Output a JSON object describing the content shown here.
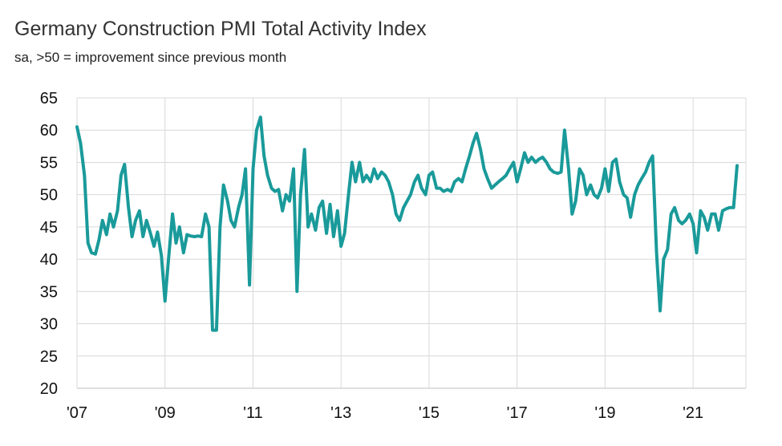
{
  "chart_data": {
    "type": "line",
    "title": "Germany Construction PMI Total Activity Index",
    "subtitle": "sa, >50 = improvement since previous month",
    "xlabel": "",
    "ylabel": "",
    "ylim": [
      20,
      65
    ],
    "yticks": [
      20,
      25,
      30,
      35,
      40,
      45,
      50,
      55,
      60,
      65
    ],
    "xlim": [
      2007.0,
      2022.2
    ],
    "xticks": [
      {
        "value": 2007,
        "label": "'07"
      },
      {
        "value": 2009,
        "label": "'09"
      },
      {
        "value": 2011,
        "label": "'11"
      },
      {
        "value": 2013,
        "label": "'13"
      },
      {
        "value": 2015,
        "label": "'15"
      },
      {
        "value": 2017,
        "label": "'17"
      },
      {
        "value": 2019,
        "label": "'19"
      },
      {
        "value": 2021,
        "label": "'21"
      }
    ],
    "grid": true,
    "line_color": "#1a9a9a",
    "series": [
      {
        "name": "",
        "points": [
          [
            2007.0,
            60.5
          ],
          [
            2007.08,
            58
          ],
          [
            2007.17,
            53
          ],
          [
            2007.25,
            42.5
          ],
          [
            2007.33,
            41
          ],
          [
            2007.42,
            40.8
          ],
          [
            2007.5,
            43
          ],
          [
            2007.58,
            46
          ],
          [
            2007.67,
            43.8
          ],
          [
            2007.75,
            47
          ],
          [
            2007.83,
            45
          ],
          [
            2007.92,
            47.5
          ],
          [
            2008.0,
            53
          ],
          [
            2008.08,
            54.7
          ],
          [
            2008.17,
            48
          ],
          [
            2008.25,
            43.5
          ],
          [
            2008.33,
            46
          ],
          [
            2008.42,
            47.5
          ],
          [
            2008.5,
            43.5
          ],
          [
            2008.58,
            46
          ],
          [
            2008.67,
            44
          ],
          [
            2008.75,
            42
          ],
          [
            2008.83,
            44.2
          ],
          [
            2008.92,
            40.5
          ],
          [
            2009.0,
            33.5
          ],
          [
            2009.08,
            40
          ],
          [
            2009.17,
            47
          ],
          [
            2009.25,
            42.5
          ],
          [
            2009.33,
            45
          ],
          [
            2009.42,
            41
          ],
          [
            2009.5,
            43.8
          ],
          [
            2009.58,
            43.6
          ],
          [
            2009.67,
            43.5
          ],
          [
            2009.75,
            43.6
          ],
          [
            2009.83,
            43.5
          ],
          [
            2009.92,
            47
          ],
          [
            2010.0,
            45
          ],
          [
            2010.08,
            29
          ],
          [
            2010.17,
            29
          ],
          [
            2010.25,
            45
          ],
          [
            2010.33,
            51.5
          ],
          [
            2010.42,
            49
          ],
          [
            2010.5,
            46
          ],
          [
            2010.58,
            45
          ],
          [
            2010.67,
            48
          ],
          [
            2010.75,
            50
          ],
          [
            2010.83,
            54
          ],
          [
            2010.92,
            36
          ],
          [
            2011.0,
            54
          ],
          [
            2011.08,
            60
          ],
          [
            2011.17,
            62
          ],
          [
            2011.25,
            56
          ],
          [
            2011.33,
            53
          ],
          [
            2011.42,
            51
          ],
          [
            2011.5,
            50.5
          ],
          [
            2011.58,
            50.8
          ],
          [
            2011.67,
            47.5
          ],
          [
            2011.75,
            50
          ],
          [
            2011.83,
            49
          ],
          [
            2011.92,
            54
          ],
          [
            2012.0,
            35
          ],
          [
            2012.08,
            50
          ],
          [
            2012.17,
            57
          ],
          [
            2012.25,
            45
          ],
          [
            2012.33,
            47
          ],
          [
            2012.42,
            44.5
          ],
          [
            2012.5,
            48
          ],
          [
            2012.58,
            49
          ],
          [
            2012.67,
            44
          ],
          [
            2012.75,
            48.5
          ],
          [
            2012.83,
            43.5
          ],
          [
            2012.92,
            47.5
          ],
          [
            2013.0,
            42
          ],
          [
            2013.08,
            44
          ],
          [
            2013.17,
            50
          ],
          [
            2013.25,
            55
          ],
          [
            2013.33,
            52
          ],
          [
            2013.42,
            55
          ],
          [
            2013.5,
            52
          ],
          [
            2013.58,
            53
          ],
          [
            2013.67,
            52
          ],
          [
            2013.75,
            54
          ],
          [
            2013.83,
            52.5
          ],
          [
            2013.92,
            53.5
          ],
          [
            2014.0,
            53
          ],
          [
            2014.08,
            52
          ],
          [
            2014.17,
            50
          ],
          [
            2014.25,
            47
          ],
          [
            2014.33,
            46
          ],
          [
            2014.42,
            48
          ],
          [
            2014.5,
            49
          ],
          [
            2014.58,
            50
          ],
          [
            2014.67,
            52
          ],
          [
            2014.75,
            53
          ],
          [
            2014.83,
            51
          ],
          [
            2014.92,
            50
          ],
          [
            2015.0,
            53
          ],
          [
            2015.08,
            53.5
          ],
          [
            2015.17,
            51
          ],
          [
            2015.25,
            51
          ],
          [
            2015.33,
            50.5
          ],
          [
            2015.42,
            50.8
          ],
          [
            2015.5,
            50.5
          ],
          [
            2015.58,
            52
          ],
          [
            2015.67,
            52.5
          ],
          [
            2015.75,
            52
          ],
          [
            2015.83,
            54
          ],
          [
            2015.92,
            56
          ],
          [
            2016.0,
            58
          ],
          [
            2016.08,
            59.5
          ],
          [
            2016.17,
            57
          ],
          [
            2016.25,
            54
          ],
          [
            2016.33,
            52.5
          ],
          [
            2016.42,
            51
          ],
          [
            2016.5,
            51.5
          ],
          [
            2016.58,
            52
          ],
          [
            2016.67,
            52.5
          ],
          [
            2016.75,
            53
          ],
          [
            2016.83,
            54
          ],
          [
            2016.92,
            55
          ],
          [
            2017.0,
            52
          ],
          [
            2017.08,
            54
          ],
          [
            2017.17,
            56.5
          ],
          [
            2017.25,
            55
          ],
          [
            2017.33,
            55.8
          ],
          [
            2017.42,
            55
          ],
          [
            2017.5,
            55.5
          ],
          [
            2017.58,
            55.8
          ],
          [
            2017.67,
            55
          ],
          [
            2017.75,
            54
          ],
          [
            2017.83,
            53.5
          ],
          [
            2017.92,
            53.3
          ],
          [
            2018.0,
            53.5
          ],
          [
            2018.08,
            60
          ],
          [
            2018.17,
            54
          ],
          [
            2018.25,
            47
          ],
          [
            2018.33,
            49
          ],
          [
            2018.42,
            54
          ],
          [
            2018.5,
            53
          ],
          [
            2018.58,
            50
          ],
          [
            2018.67,
            51.5
          ],
          [
            2018.75,
            50
          ],
          [
            2018.83,
            49.5
          ],
          [
            2018.92,
            51
          ],
          [
            2019.0,
            54
          ],
          [
            2019.08,
            50.5
          ],
          [
            2019.17,
            55
          ],
          [
            2019.25,
            55.5
          ],
          [
            2019.33,
            52
          ],
          [
            2019.42,
            50
          ],
          [
            2019.5,
            49.5
          ],
          [
            2019.58,
            46.5
          ],
          [
            2019.67,
            50
          ],
          [
            2019.75,
            51.5
          ],
          [
            2019.83,
            52.5
          ],
          [
            2019.92,
            53.5
          ],
          [
            2020.0,
            55
          ],
          [
            2020.08,
            56
          ],
          [
            2020.17,
            41
          ],
          [
            2020.25,
            32
          ],
          [
            2020.33,
            40
          ],
          [
            2020.42,
            41.5
          ],
          [
            2020.5,
            47
          ],
          [
            2020.58,
            48
          ],
          [
            2020.67,
            46
          ],
          [
            2020.75,
            45.5
          ],
          [
            2020.83,
            46
          ],
          [
            2020.92,
            47
          ],
          [
            2021.0,
            45.5
          ],
          [
            2021.08,
            41
          ],
          [
            2021.17,
            47.5
          ],
          [
            2021.25,
            46.5
          ],
          [
            2021.33,
            44.5
          ],
          [
            2021.42,
            47
          ],
          [
            2021.5,
            47
          ],
          [
            2021.58,
            44.5
          ],
          [
            2021.67,
            47.5
          ],
          [
            2021.75,
            47.8
          ],
          [
            2021.83,
            48
          ],
          [
            2021.92,
            48
          ],
          [
            2022.0,
            54.5
          ]
        ]
      }
    ]
  }
}
